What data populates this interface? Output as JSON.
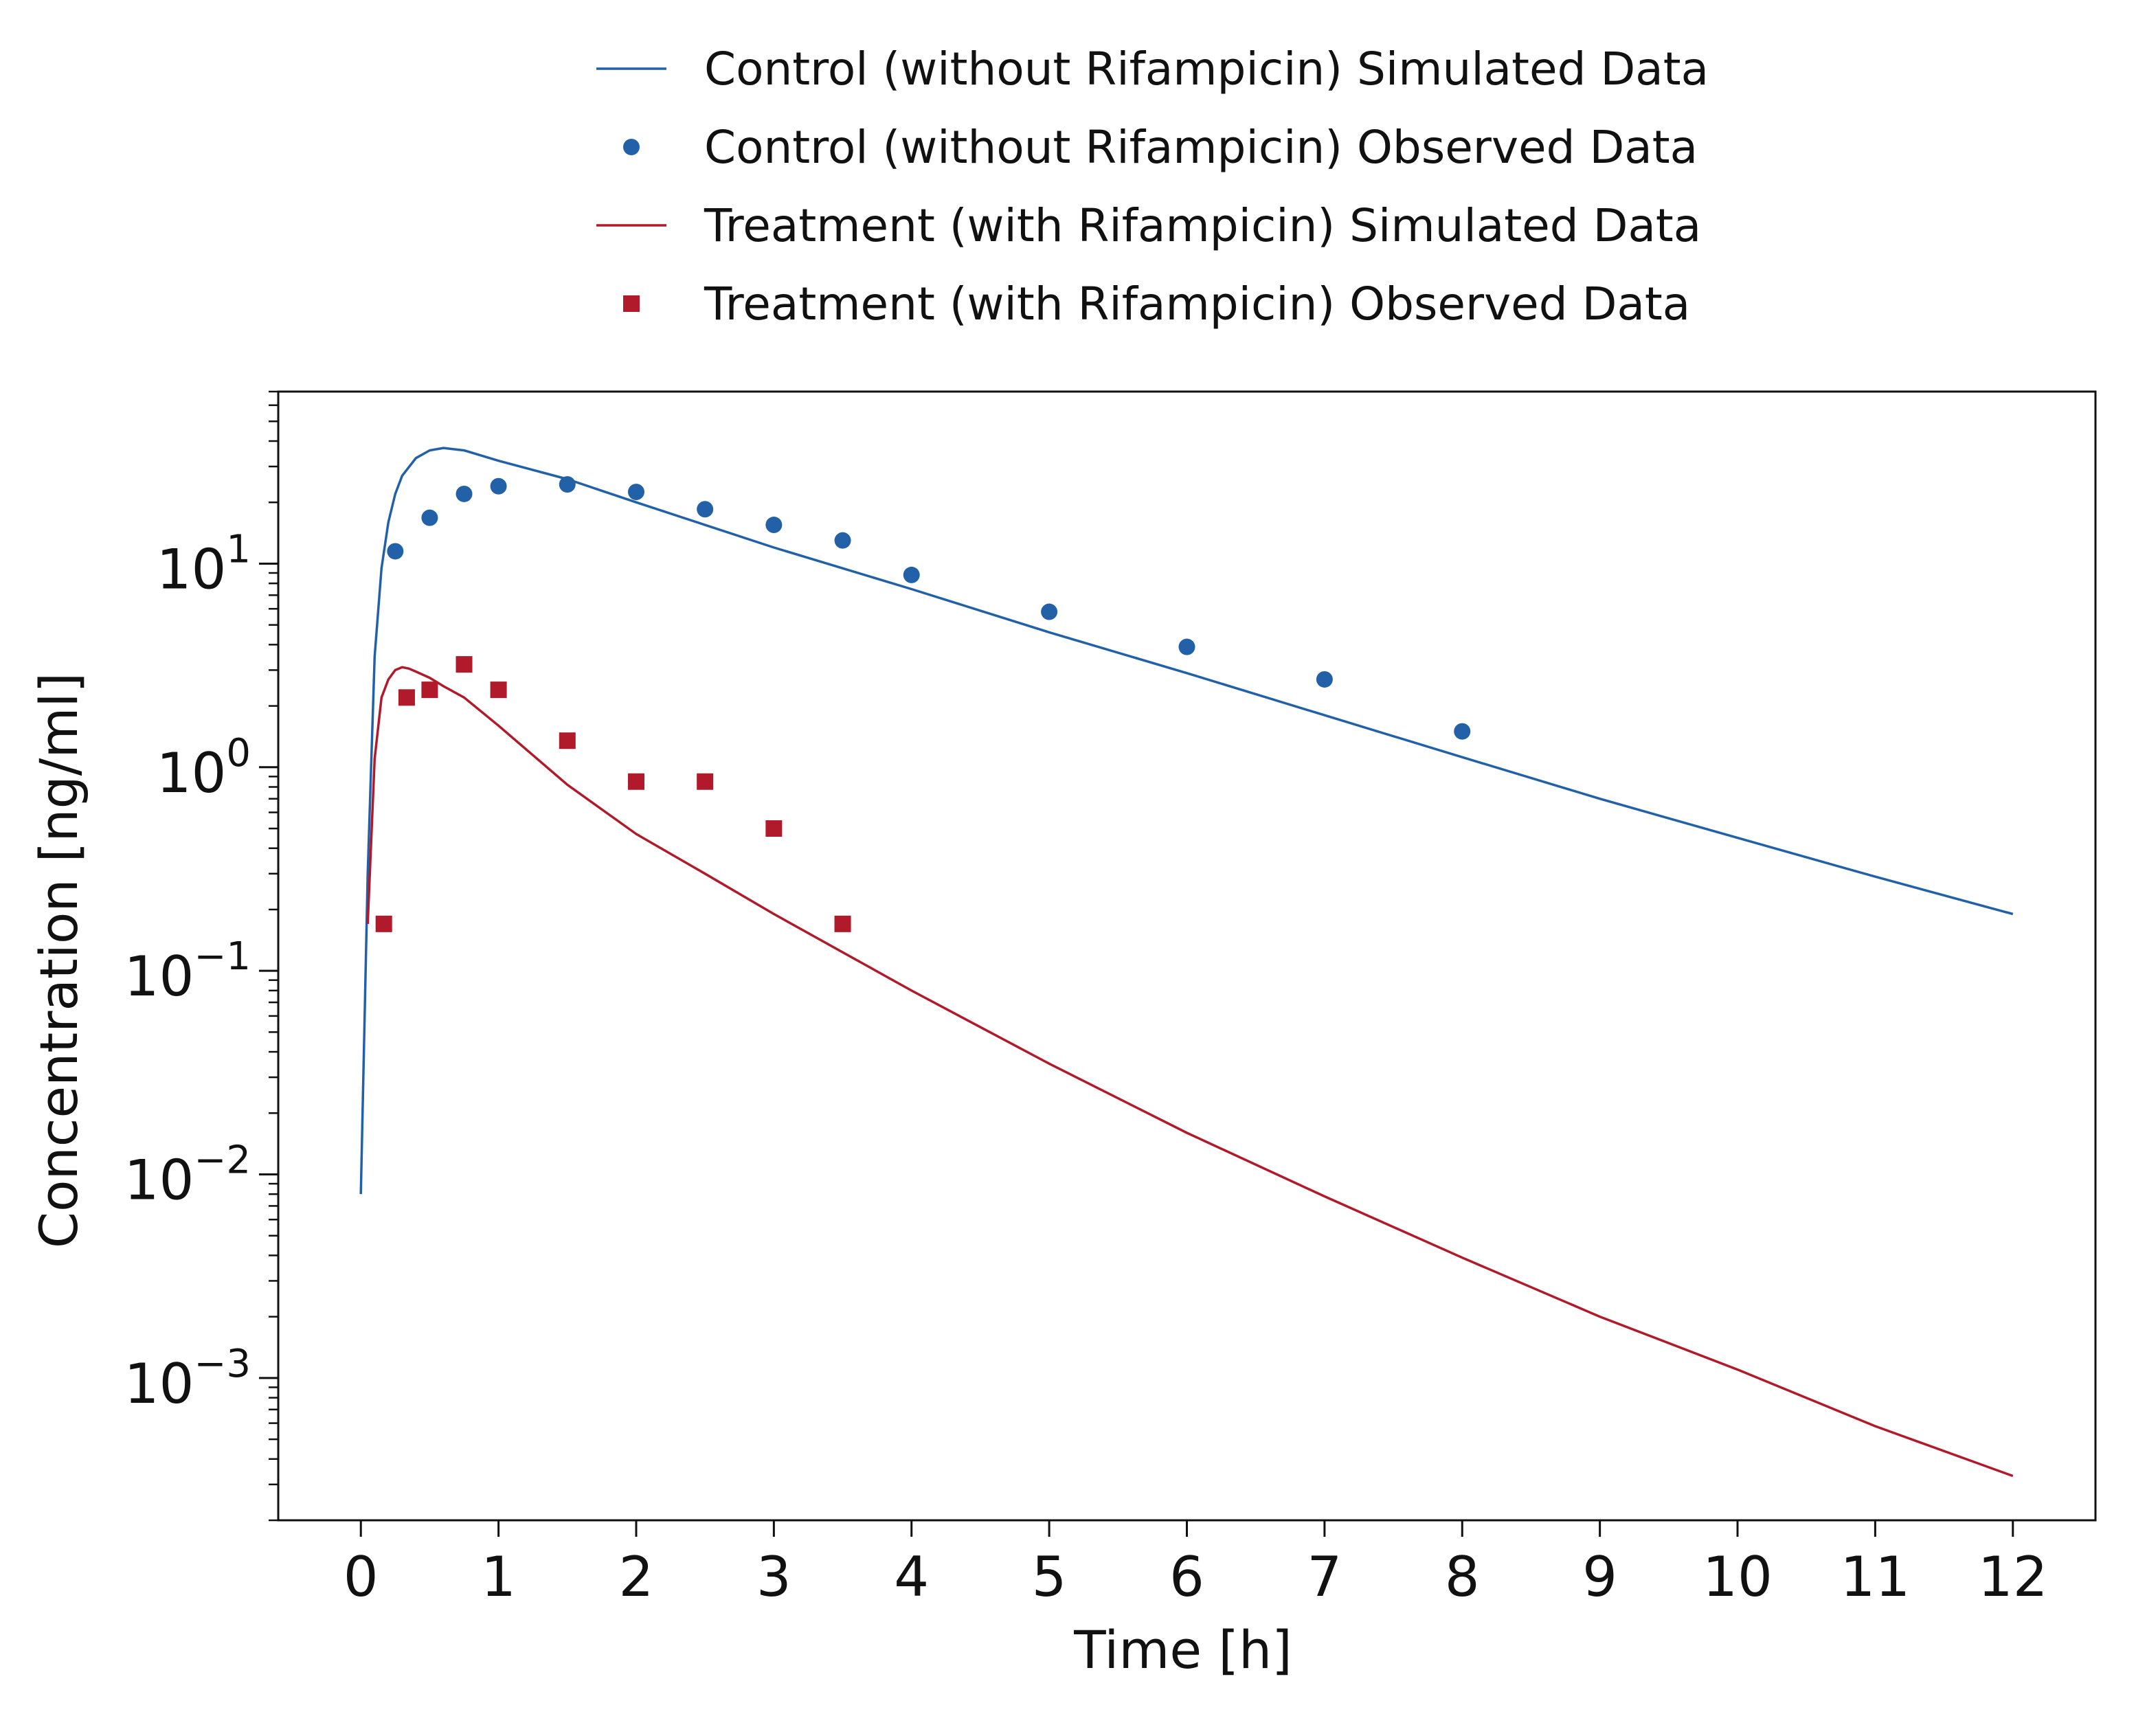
{
  "chart_data": {
    "type": "line",
    "title": "",
    "xlabel": "Time [h]",
    "ylabel": "Concentration [ng/ml]",
    "xlim": [
      -0.6,
      12.6
    ],
    "ylim": [
      0.0002,
      70
    ],
    "yscale": "log",
    "grid": false,
    "legend_position": "top-center",
    "x_ticks": [
      "0",
      "1",
      "2",
      "3",
      "4",
      "5",
      "6",
      "7",
      "8",
      "9",
      "10",
      "11",
      "12"
    ],
    "y_ticks": [
      {
        "mantissa": "10",
        "exponent": "1",
        "value": 10
      },
      {
        "mantissa": "10",
        "exponent": "0",
        "value": 1
      },
      {
        "mantissa": "10",
        "exponent": "−1",
        "value": 0.1
      },
      {
        "mantissa": "10",
        "exponent": "−2",
        "value": 0.01
      },
      {
        "mantissa": "10",
        "exponent": "−3",
        "value": 0.001
      }
    ],
    "series": [
      {
        "name": "Control (without Rifampicin) Simulated Data",
        "kind": "line",
        "color": "#2261a8",
        "x": [
          0,
          0.05,
          0.1,
          0.15,
          0.2,
          0.25,
          0.3,
          0.4,
          0.5,
          0.6,
          0.75,
          1,
          1.5,
          2,
          3,
          4,
          5,
          6,
          7,
          8,
          9,
          10,
          11,
          12
        ],
        "y": [
          0.008,
          0.3,
          3.5,
          9.5,
          16,
          22,
          27,
          33,
          36,
          37,
          36,
          32,
          26,
          20,
          12,
          7.5,
          4.6,
          2.9,
          1.8,
          1.12,
          0.7,
          0.45,
          0.29,
          0.19
        ]
      },
      {
        "name": "Control (without Rifampicin) Observed Data",
        "kind": "scatter",
        "marker": "circle",
        "color": "#2261a8",
        "x": [
          0.25,
          0.5,
          0.75,
          1,
          1.5,
          2,
          2.5,
          3,
          3.5,
          4,
          5,
          6,
          7,
          8
        ],
        "y": [
          11.5,
          16.8,
          22,
          24,
          24.5,
          22.5,
          18.5,
          15.5,
          13,
          8.8,
          5.8,
          3.9,
          2.7,
          1.5
        ]
      },
      {
        "name": "Treatment (with Rifampicin) Simulated Data",
        "kind": "line",
        "color": "#b11a2a",
        "x": [
          0.05,
          0.1,
          0.15,
          0.2,
          0.25,
          0.3,
          0.35,
          0.4,
          0.5,
          0.6,
          0.75,
          1,
          1.5,
          2,
          2.5,
          3,
          4,
          5,
          6,
          7,
          8,
          9,
          10,
          11,
          12
        ],
        "y": [
          0.17,
          1.1,
          2.2,
          2.7,
          3.0,
          3.1,
          3.05,
          2.95,
          2.75,
          2.5,
          2.2,
          1.6,
          0.82,
          0.47,
          0.3,
          0.19,
          0.08,
          0.035,
          0.016,
          0.0078,
          0.0039,
          0.002,
          0.0011,
          0.00058,
          0.00033
        ]
      },
      {
        "name": "Treatment (with Rifampicin) Observed Data",
        "kind": "scatter",
        "marker": "square",
        "color": "#b11a2a",
        "x": [
          0.167,
          0.333,
          0.5,
          0.75,
          1,
          1.5,
          2,
          2.5,
          3,
          3.5
        ],
        "y": [
          0.17,
          2.2,
          2.4,
          3.2,
          2.4,
          1.35,
          0.85,
          0.85,
          0.5,
          0.17
        ]
      }
    ]
  }
}
